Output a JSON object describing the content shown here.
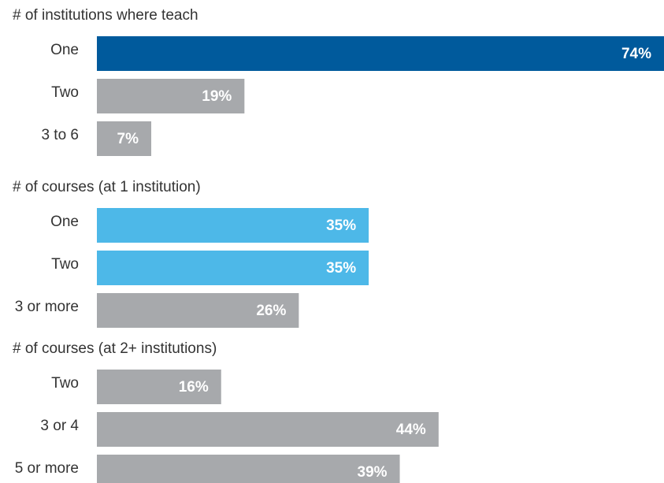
{
  "chart_data": [
    {
      "type": "bar",
      "title": "# of institutions where teach",
      "categories": [
        "One",
        "Two",
        "3 to 6"
      ],
      "values": [
        74,
        19,
        7
      ],
      "value_labels": [
        "74%",
        "19%",
        "7%"
      ],
      "colors": [
        "#005a9c",
        "#a7a9ac",
        "#a7a9ac"
      ]
    },
    {
      "type": "bar",
      "title": "# of courses (at 1 institution)",
      "categories": [
        "One",
        "Two",
        "3 or more"
      ],
      "values": [
        35,
        35,
        26
      ],
      "value_labels": [
        "35%",
        "35%",
        "26%"
      ],
      "colors": [
        "#4db8e8",
        "#4db8e8",
        "#a7a9ac"
      ]
    },
    {
      "type": "bar",
      "title": "# of courses (at 2+ institutions)",
      "categories": [
        "Two",
        "3 or 4",
        "5 or more"
      ],
      "values": [
        16,
        44,
        39
      ],
      "value_labels": [
        "16%",
        "44%",
        "39%"
      ],
      "colors": [
        "#a7a9ac",
        "#a7a9ac",
        "#a7a9ac"
      ]
    }
  ]
}
